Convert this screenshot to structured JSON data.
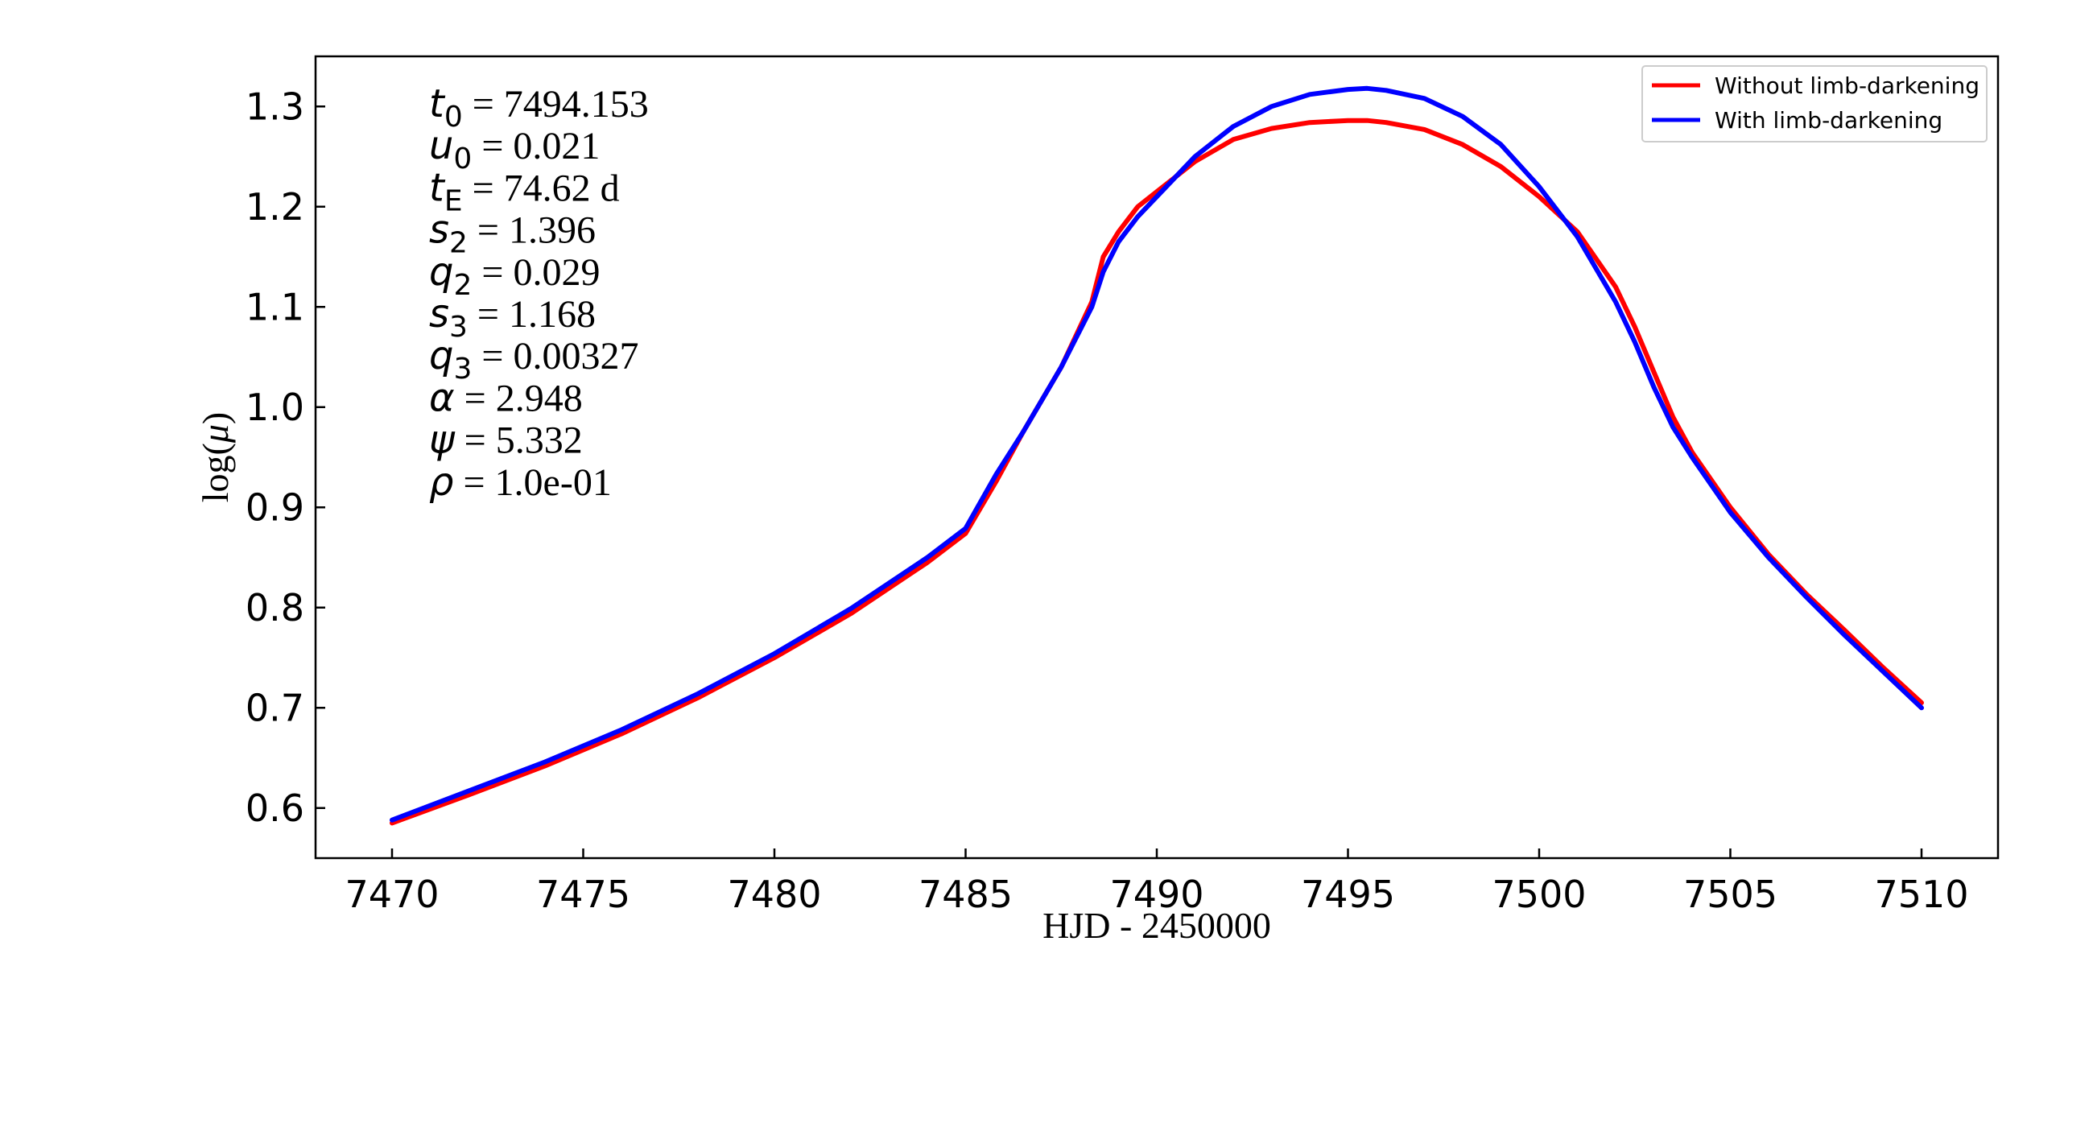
{
  "chart_data": {
    "type": "line",
    "title": "",
    "xlabel": "HJD - 2450000",
    "ylabel_prefix": "log(",
    "ylabel_symbol": "μ",
    "ylabel_suffix": ")",
    "xlim": [
      7468,
      7512
    ],
    "ylim": [
      0.55,
      1.35
    ],
    "xticks": [
      7470,
      7475,
      7480,
      7485,
      7490,
      7495,
      7500,
      7505,
      7510
    ],
    "xtick_labels": [
      "7470",
      "7475",
      "7480",
      "7485",
      "7490",
      "7495",
      "7500",
      "7505",
      "7510"
    ],
    "yticks": [
      0.6,
      0.7,
      0.8,
      0.9,
      1.0,
      1.1,
      1.2,
      1.3
    ],
    "ytick_labels": [
      "0.6",
      "0.7",
      "0.8",
      "0.9",
      "1.0",
      "1.1",
      "1.2",
      "1.3"
    ],
    "grid": false,
    "legend_position": "top-right",
    "parameters": [
      {
        "symbol": "t",
        "sub": "0",
        "value": " = 7494.153"
      },
      {
        "symbol": "u",
        "sub": "0",
        "value": " = 0.021"
      },
      {
        "symbol": "t",
        "sub": "E",
        "value": " = 74.62 d"
      },
      {
        "symbol": "s",
        "sub": "2",
        "value": " = 1.396"
      },
      {
        "symbol": "q",
        "sub": "2",
        "value": " = 0.029"
      },
      {
        "symbol": "s",
        "sub": "3",
        "value": " = 1.168"
      },
      {
        "symbol": "q",
        "sub": "3",
        "value": " = 0.00327"
      },
      {
        "symbol": "α",
        "sub": "",
        "value": " = 2.948"
      },
      {
        "symbol": "ψ",
        "sub": "",
        "value": " = 5.332"
      },
      {
        "symbol": "ρ",
        "sub": "",
        "value": " = 1.0e-01"
      }
    ],
    "series": [
      {
        "name": "Without limb-darkening",
        "color": "#ff0000",
        "x": [
          7470,
          7472,
          7474,
          7476,
          7478,
          7480,
          7482,
          7484,
          7485,
          7485.8,
          7486.5,
          7487.5,
          7488.3,
          7488.6,
          7489,
          7489.5,
          7490,
          7491,
          7492,
          7493,
          7494,
          7495,
          7495.5,
          7496,
          7497,
          7498,
          7499,
          7500,
          7501,
          7502,
          7502.5,
          7503,
          7503.5,
          7504,
          7505,
          7506,
          7507,
          7508,
          7509,
          7510
        ],
        "y": [
          0.585,
          0.613,
          0.642,
          0.674,
          0.71,
          0.75,
          0.794,
          0.845,
          0.874,
          0.926,
          0.975,
          1.04,
          1.105,
          1.15,
          1.175,
          1.2,
          1.215,
          1.245,
          1.267,
          1.278,
          1.284,
          1.286,
          1.286,
          1.284,
          1.277,
          1.262,
          1.24,
          1.21,
          1.175,
          1.12,
          1.08,
          1.035,
          0.99,
          0.955,
          0.9,
          0.853,
          0.813,
          0.777,
          0.74,
          0.705
        ]
      },
      {
        "name": "With limb-darkening",
        "color": "#0000ff",
        "x": [
          7470,
          7472,
          7474,
          7476,
          7478,
          7480,
          7482,
          7484,
          7485,
          7485.8,
          7486.5,
          7487.5,
          7488.3,
          7488.6,
          7489,
          7489.5,
          7490,
          7491,
          7492,
          7493,
          7494,
          7495,
          7495.5,
          7496,
          7497,
          7498,
          7499,
          7500,
          7501,
          7502,
          7502.5,
          7503,
          7503.5,
          7504,
          7505,
          7506,
          7507,
          7508,
          7509,
          7510
        ],
        "y": [
          0.588,
          0.617,
          0.646,
          0.678,
          0.714,
          0.754,
          0.799,
          0.85,
          0.879,
          0.933,
          0.975,
          1.04,
          1.1,
          1.135,
          1.165,
          1.19,
          1.21,
          1.25,
          1.28,
          1.3,
          1.312,
          1.317,
          1.318,
          1.316,
          1.308,
          1.29,
          1.262,
          1.22,
          1.17,
          1.105,
          1.065,
          1.02,
          0.98,
          0.95,
          0.895,
          0.85,
          0.81,
          0.772,
          0.736,
          0.7
        ]
      }
    ]
  }
}
